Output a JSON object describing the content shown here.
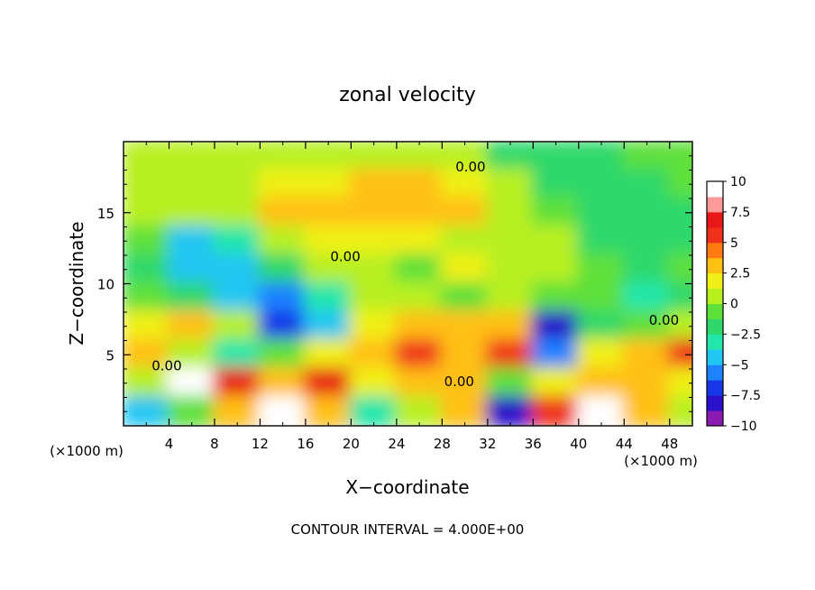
{
  "chart_data": {
    "type": "heatmap",
    "title": "zonal velocity",
    "xlabel": "X−coordinate",
    "ylabel": "Z−coordinate",
    "x_unit_left": "(×1000 m)",
    "x_unit_right": "(×1000 m)",
    "xlim": [
      0,
      50
    ],
    "ylim": [
      0,
      20
    ],
    "xticks": [
      4,
      8,
      12,
      16,
      20,
      24,
      28,
      32,
      36,
      40,
      44,
      48
    ],
    "xtick_labels": [
      "4",
      "8",
      "12",
      "16",
      "20",
      "24",
      "28",
      "32",
      "36",
      "40",
      "44",
      "48"
    ],
    "yticks": [
      5,
      10,
      15
    ],
    "ytick_labels": [
      "5",
      "10",
      "15"
    ],
    "footer": "CONTOUR INTERVAL = 4.000E+00",
    "contour_labels": [
      {
        "text": "0.00",
        "x": 30.5,
        "y": 17.9
      },
      {
        "text": "0.00",
        "x": 19.5,
        "y": 11.6
      },
      {
        "text": "0.00",
        "x": 3.8,
        "y": 3.9
      },
      {
        "text": "0.00",
        "x": 29.5,
        "y": 2.8
      },
      {
        "text": "0.00",
        "x": 47.5,
        "y": 7.1
      }
    ],
    "colorbar": {
      "range": [
        -10,
        10
      ],
      "tick_values": [
        10,
        7.5,
        5,
        2.5,
        0,
        -2.5,
        -5,
        -7.5,
        -10
      ],
      "tick_labels": [
        "10",
        "7.5",
        "5",
        "2.5",
        "0",
        "−2.5",
        "−5",
        "−7.5",
        "−10"
      ],
      "colors": [
        "#8a1ab0",
        "#2a10c8",
        "#1838e8",
        "#1f82ff",
        "#22c6f2",
        "#22e6aa",
        "#2ed86a",
        "#5ee03a",
        "#b8f020",
        "#f0f018",
        "#ffc014",
        "#ff7a10",
        "#f0301a",
        "#e81818",
        "#ff9a9a",
        "#ffffff"
      ]
    },
    "field": {
      "x_centers": [
        2,
        6,
        10,
        14,
        18,
        22,
        26,
        30,
        34,
        38,
        42,
        46,
        50
      ],
      "z_centers": [
        19,
        17,
        15,
        13,
        11,
        9,
        7,
        5,
        3,
        1
      ],
      "values": [
        [
          0.5,
          0.5,
          1.0,
          1.0,
          1.0,
          0.5,
          0.5,
          0.5,
          -1.5,
          -2.0,
          -1.5,
          -1.0,
          -0.5
        ],
        [
          0.5,
          0.5,
          1.0,
          2.0,
          2.0,
          2.5,
          2.5,
          2.0,
          0.5,
          -1.5,
          -2.0,
          -1.5,
          -1.0
        ],
        [
          0.5,
          0.0,
          0.5,
          2.5,
          3.0,
          3.0,
          3.0,
          2.5,
          1.0,
          -0.5,
          -2.0,
          -2.5,
          -2.0
        ],
        [
          -1.0,
          -4.0,
          -3.5,
          0.0,
          1.5,
          2.0,
          2.0,
          1.0,
          0.5,
          0.0,
          -1.5,
          -2.0,
          -1.5
        ],
        [
          -1.5,
          -5.0,
          -4.5,
          -2.0,
          0.0,
          1.0,
          -0.5,
          1.5,
          0.5,
          0.0,
          -0.5,
          -1.5,
          -1.0
        ],
        [
          -0.5,
          -2.0,
          -4.0,
          -6.0,
          -3.0,
          0.0,
          1.0,
          -0.5,
          0.5,
          -0.5,
          -1.0,
          -3.5,
          -2.0
        ],
        [
          1.5,
          2.5,
          0.0,
          -6.5,
          -4.5,
          2.0,
          3.0,
          2.5,
          3.0,
          -8.5,
          -2.0,
          -1.0,
          1.0
        ],
        [
          3.0,
          0.0,
          -3.0,
          -1.0,
          2.0,
          3.5,
          5.0,
          3.5,
          5.5,
          -6.0,
          2.0,
          3.0,
          5.0
        ],
        [
          1.0,
          9.5,
          7.0,
          3.0,
          6.5,
          2.0,
          3.0,
          3.0,
          -1.0,
          1.5,
          3.5,
          2.5,
          1.5
        ],
        [
          -5.0,
          -1.0,
          2.5,
          9.0,
          2.5,
          -3.0,
          1.0,
          2.5,
          -8.0,
          5.5,
          9.0,
          3.5,
          1.0
        ]
      ]
    }
  }
}
